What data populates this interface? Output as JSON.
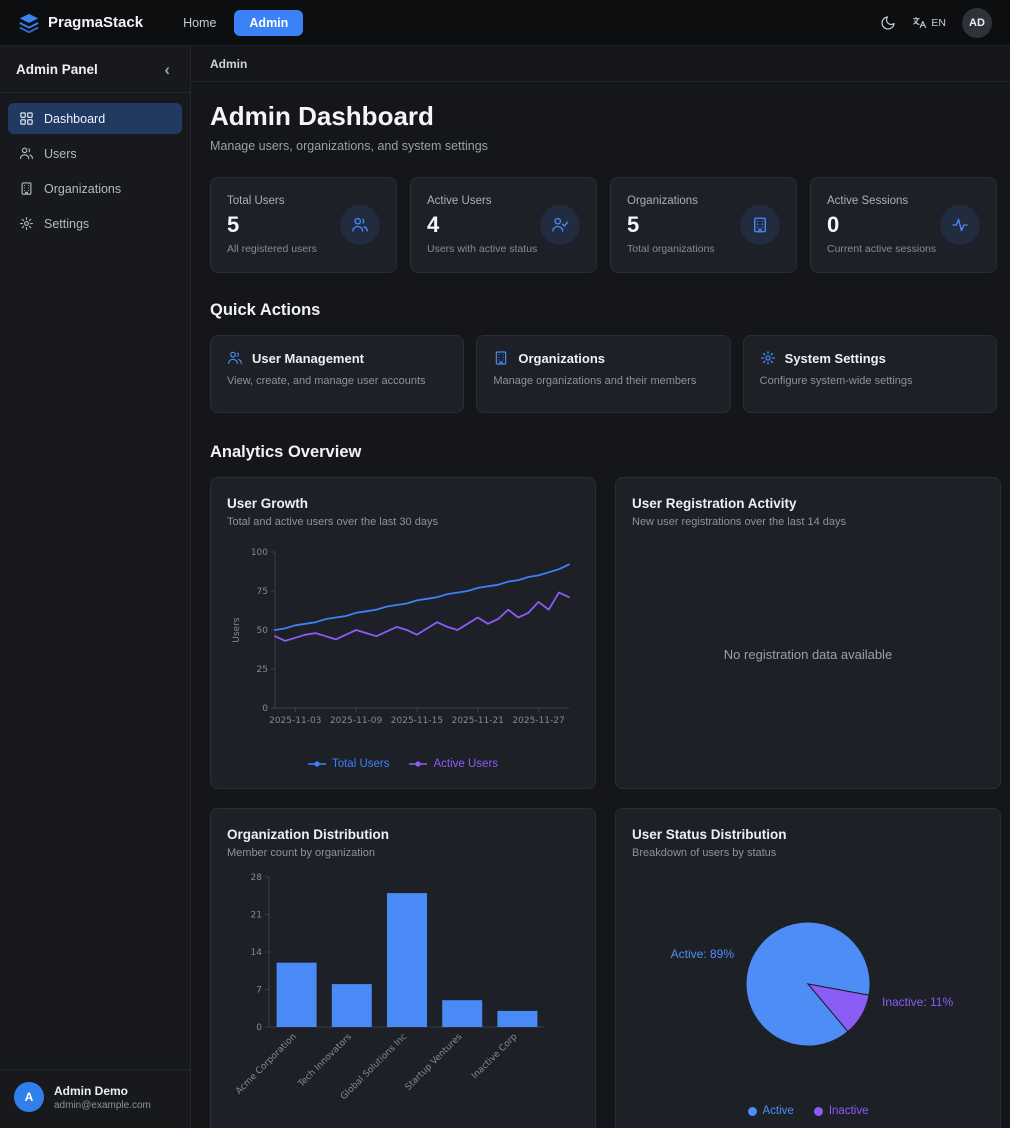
{
  "navbar": {
    "brand": "PragmaStack",
    "links": [
      {
        "label": "Home",
        "active": false
      },
      {
        "label": "Admin",
        "active": true
      }
    ],
    "language_label": "EN",
    "avatar_initials": "AD"
  },
  "sidebar": {
    "title": "Admin Panel",
    "collapse_glyph": "‹",
    "items": [
      {
        "label": "Dashboard",
        "active": true
      },
      {
        "label": "Users",
        "active": false
      },
      {
        "label": "Organizations",
        "active": false
      },
      {
        "label": "Settings",
        "active": false
      }
    ],
    "user": {
      "initial": "A",
      "name": "Admin Demo",
      "email": "admin@example.com"
    }
  },
  "breadcrumb": {
    "current": "Admin"
  },
  "page": {
    "title": "Admin Dashboard",
    "subtitle": "Manage users, organizations, and system settings"
  },
  "stats": [
    {
      "label": "Total Users",
      "value": "5",
      "caption": "All registered users",
      "icon": "users-icon"
    },
    {
      "label": "Active Users",
      "value": "4",
      "caption": "Users with active status",
      "icon": "user-check-icon"
    },
    {
      "label": "Organizations",
      "value": "5",
      "caption": "Total organizations",
      "icon": "building-icon"
    },
    {
      "label": "Active Sessions",
      "value": "0",
      "caption": "Current active sessions",
      "icon": "activity-icon"
    }
  ],
  "quick_actions": {
    "heading": "Quick Actions",
    "cards": [
      {
        "title": "User Management",
        "description": "View, create, and manage user accounts",
        "icon": "users-icon"
      },
      {
        "title": "Organizations",
        "description": "Manage organizations and their members",
        "icon": "building-icon"
      },
      {
        "title": "System Settings",
        "description": "Configure system-wide settings",
        "icon": "gear-icon"
      }
    ]
  },
  "analytics": {
    "heading": "Analytics Overview"
  },
  "colors": {
    "accent_blue": "#3b82f6",
    "accent_purple": "#8b5cf6"
  },
  "chart_data": [
    {
      "type": "line",
      "title": "User Growth",
      "subtitle": "Total and active users over the last 30 days",
      "ylabel": "Users",
      "ylim": [
        0,
        100
      ],
      "yticks": [
        0,
        25,
        50,
        75,
        100
      ],
      "xticks": [
        "2025-11-03",
        "2025-11-09",
        "2025-11-15",
        "2025-11-21",
        "2025-11-27"
      ],
      "xtick_indices": [
        2,
        8,
        14,
        20,
        26
      ],
      "grid": false,
      "legend_position": "bottom",
      "series": [
        {
          "name": "Total Users",
          "color": "#3b82f6",
          "values": [
            50,
            51,
            53,
            54,
            55,
            57,
            58,
            59,
            61,
            62,
            63,
            65,
            66,
            67,
            69,
            70,
            71,
            73,
            74,
            75,
            77,
            78,
            79,
            81,
            82,
            84,
            85,
            87,
            89,
            92
          ]
        },
        {
          "name": "Active Users",
          "color": "#8b5cf6",
          "values": [
            46,
            43,
            45,
            47,
            48,
            46,
            44,
            47,
            50,
            48,
            46,
            49,
            52,
            50,
            47,
            51,
            55,
            52,
            50,
            54,
            58,
            54,
            57,
            63,
            58,
            61,
            68,
            63,
            74,
            71
          ]
        }
      ]
    },
    {
      "type": "empty",
      "title": "User Registration Activity",
      "subtitle": "New user registrations over the last 14 days",
      "empty_text": "No registration data available"
    },
    {
      "type": "bar",
      "title": "Organization Distribution",
      "subtitle": "Member count by organization",
      "categories": [
        "Acme Corporation",
        "Tech Innovators",
        "Global Solutions Inc",
        "Startup Ventures",
        "Inactive Corp"
      ],
      "values": [
        12,
        8,
        25,
        5,
        3
      ],
      "ylim": [
        0,
        28
      ],
      "yticks": [
        0,
        7,
        14,
        21,
        28
      ],
      "bar_color": "#4a8af6",
      "grid": false
    },
    {
      "type": "pie",
      "title": "User Status Distribution",
      "subtitle": "Breakdown of users by status",
      "rotate": 140,
      "slices": [
        {
          "label": "Active",
          "pct": 89,
          "color": "#4e8df6",
          "callout": "Active: 89%"
        },
        {
          "label": "Inactive",
          "pct": 11,
          "color": "#8b5cf6",
          "callout": "Inactive: 11%"
        }
      ],
      "legend_position": "bottom"
    }
  ]
}
